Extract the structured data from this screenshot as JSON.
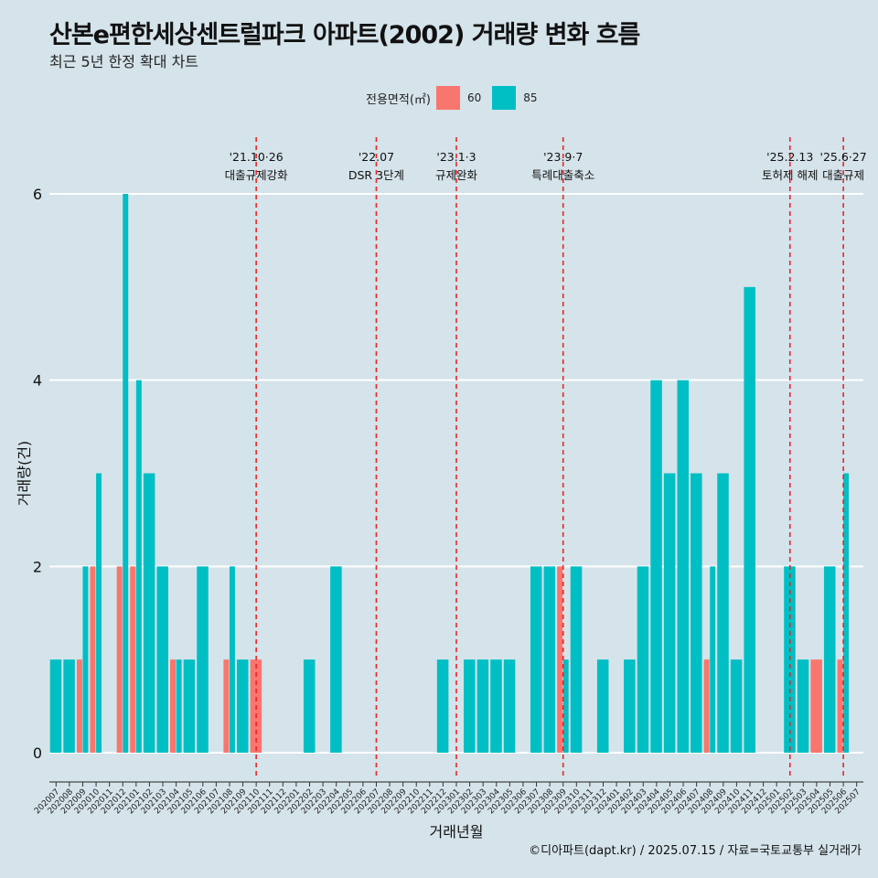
{
  "title": "산본e편한세상센트럴파크 아파트(2002) 거래량 변화 흐름",
  "subtitle": "최근 5년 한정 확대 차트",
  "caption": "©디아파트(dapt.kr) / 2025.07.15 / 자료=국토교통부 실거래가",
  "colors": {
    "background": "#d5e3ea",
    "series60": "#f8766d",
    "series85": "#00bfc4",
    "vline": "#e8262a",
    "grid": "#ffffff"
  },
  "chart_data": {
    "type": "bar",
    "stacked": false,
    "xlabel": "거래년월",
    "ylabel": "거래량(건)",
    "ylim": [
      0,
      6
    ],
    "yticks": [
      0,
      2,
      4,
      6
    ],
    "legend": {
      "title": "전용면적(㎡)",
      "position": "top"
    },
    "categories": [
      "202007",
      "202008",
      "202009",
      "202010",
      "202011",
      "202012",
      "202101",
      "202102",
      "202103",
      "202104",
      "202105",
      "202106",
      "202107",
      "202108",
      "202109",
      "202110",
      "202111",
      "202112",
      "202201",
      "202202",
      "202203",
      "202204",
      "202205",
      "202206",
      "202207",
      "202208",
      "202209",
      "202210",
      "202211",
      "202212",
      "202301",
      "202302",
      "202303",
      "202304",
      "202305",
      "202306",
      "202307",
      "202308",
      "202309",
      "202310",
      "202311",
      "202312",
      "202401",
      "202402",
      "202403",
      "202404",
      "202405",
      "202406",
      "202407",
      "202408",
      "202409",
      "202410",
      "202411",
      "202412",
      "202501",
      "202502",
      "202503",
      "202504",
      "202505",
      "202506",
      "202507"
    ],
    "series": [
      {
        "name": "60",
        "color": "#f8766d",
        "values": [
          0,
          0,
          1,
          2,
          0,
          2,
          2,
          0,
          0,
          1,
          0,
          0,
          0,
          1,
          0,
          1,
          0,
          0,
          0,
          0,
          0,
          0,
          0,
          0,
          0,
          0,
          0,
          0,
          0,
          0,
          0,
          0,
          0,
          0,
          0,
          0,
          0,
          0,
          2,
          0,
          0,
          0,
          0,
          0,
          0,
          0,
          0,
          0,
          0,
          1,
          0,
          0,
          0,
          0,
          0,
          0,
          0,
          1,
          0,
          1,
          0
        ]
      },
      {
        "name": "85",
        "color": "#00bfc4",
        "values": [
          1,
          1,
          2,
          3,
          0,
          6,
          4,
          3,
          2,
          1,
          1,
          2,
          0,
          2,
          1,
          0,
          0,
          0,
          0,
          1,
          0,
          2,
          0,
          0,
          0,
          0,
          0,
          0,
          0,
          1,
          0,
          1,
          1,
          1,
          1,
          0,
          2,
          2,
          1,
          2,
          0,
          1,
          0,
          1,
          2,
          4,
          3,
          4,
          3,
          2,
          3,
          1,
          5,
          0,
          0,
          2,
          1,
          0,
          2,
          3,
          0
        ]
      }
    ],
    "annotations": [
      {
        "category": "202110",
        "date": "'21.10·26",
        "label": "대출규제강화"
      },
      {
        "category": "202207",
        "date": "'22.07",
        "label": "DSR 3단계"
      },
      {
        "category": "202301",
        "date": "'23.1·3",
        "label": "규제완화"
      },
      {
        "category": "202309",
        "date": "'23.9·7",
        "label": "특례대출축소"
      },
      {
        "category": "202502",
        "date": "'25.2.13",
        "label": "토허제 해제"
      },
      {
        "category": "202506",
        "date": "'25.6·27",
        "label": "대출규제"
      }
    ]
  }
}
